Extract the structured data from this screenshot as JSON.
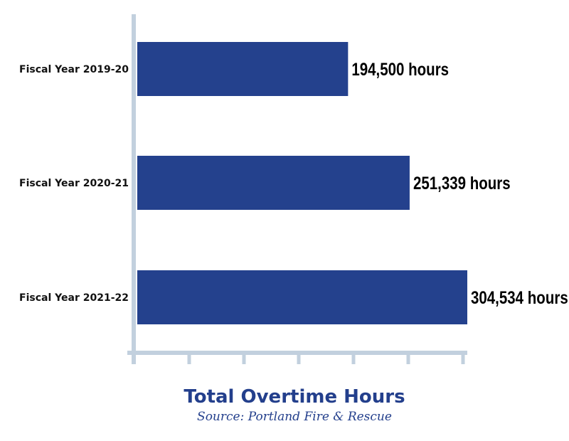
{
  "chart_data": {
    "type": "bar",
    "orientation": "horizontal",
    "title": "Total Overtime Hours",
    "subtitle": "Source: Portland Fire & Rescue",
    "categories": [
      "Fiscal Year 2019-20",
      "Fiscal Year 2020-21",
      "Fiscal Year 2021-22"
    ],
    "values": [
      194500,
      251339,
      304534
    ],
    "value_labels": [
      "194,500 hours",
      "251,339 hours",
      "304,534 hours"
    ],
    "xlim": [
      0,
      304534
    ],
    "grid": false,
    "legend": "none",
    "colors": {
      "bar": "#24418d",
      "axis": "#c2d0de",
      "title": "#233f8c",
      "text": "#111111"
    }
  }
}
